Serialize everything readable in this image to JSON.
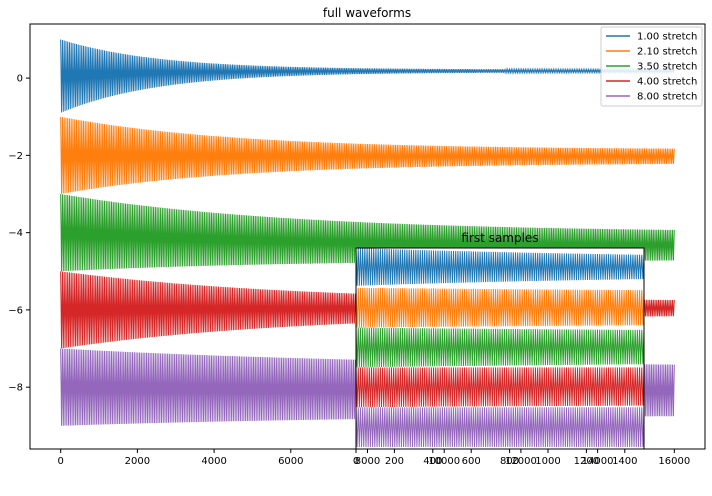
{
  "chart_data": [
    {
      "type": "line",
      "title": "full waveforms",
      "xlabel": "",
      "ylabel": "",
      "xlim": [
        -800,
        16800
      ],
      "ylim": [
        -9.6,
        1.4
      ],
      "xticks": [
        0,
        2000,
        4000,
        6000,
        8000,
        10000,
        12000,
        14000,
        16000
      ],
      "xtick_labels": [
        "0",
        "2000",
        "4000",
        "6000",
        "8000",
        "10000",
        "12000",
        "14000",
        "16000"
      ],
      "yticks": [
        0,
        -2,
        -4,
        -6,
        -8
      ],
      "ytick_labels": [
        "0",
        "−2",
        "−4",
        "−6",
        "−8"
      ],
      "grid": false,
      "legend_position": "top-right",
      "series": [
        {
          "name": "1.00 stretch",
          "color": "#1f77b4",
          "x_range": [
            0,
            16000
          ],
          "start_band": [
            -0.9,
            1.0
          ],
          "settled_band": [
            0.15,
            0.22
          ],
          "decay_samples": 2500
        },
        {
          "name": "2.10 stretch",
          "color": "#ff7f0e",
          "x_range": [
            0,
            16000
          ],
          "start_band": [
            -3.0,
            -1.0
          ],
          "settled_band": [
            -2.2,
            -1.85
          ],
          "decay_samples": 4500
        },
        {
          "name": "3.50 stretch",
          "color": "#2ca02c",
          "x_range": [
            0,
            16000
          ],
          "start_band": [
            -5.0,
            -3.0
          ],
          "settled_band": [
            -4.7,
            -4.0
          ],
          "decay_samples": 6000
        },
        {
          "name": "4.00 stretch",
          "color": "#d62728",
          "x_range": [
            0,
            16000
          ],
          "start_band": [
            -7.0,
            -5.0
          ],
          "settled_band": [
            -6.1,
            -5.8
          ],
          "decay_samples": 6000
        },
        {
          "name": "8.00 stretch",
          "color": "#9467bd",
          "x_range": [
            0,
            16000
          ],
          "start_band": [
            -9.0,
            -7.0
          ],
          "settled_band": [
            -8.7,
            -7.5
          ],
          "decay_samples": 9000
        }
      ]
    },
    {
      "type": "line",
      "title": "first samples",
      "xlabel": "",
      "ylabel": "",
      "xlim": [
        0,
        1500
      ],
      "ylim": [
        -9.1,
        1.0
      ],
      "xticks": [
        0,
        200,
        400,
        600,
        800,
        1000,
        1200,
        1400
      ],
      "xtick_labels": [
        "0",
        "200",
        "400",
        "600",
        "800",
        "1000",
        "1200",
        "1400"
      ],
      "grid": false,
      "series": [
        {
          "name": "1.00 stretch",
          "color": "#1f77b4",
          "x_range": [
            0,
            1500
          ],
          "start_band": [
            -0.9,
            1.0
          ],
          "settled_band": [
            -0.3,
            0.4
          ],
          "decay_samples": 1800
        },
        {
          "name": "2.10 stretch",
          "color": "#ff7f0e",
          "x_range": [
            0,
            1500
          ],
          "start_band": [
            -3.0,
            -1.0
          ],
          "settled_band": [
            -2.7,
            -1.3
          ],
          "decay_samples": 3000
        },
        {
          "name": "3.50 stretch",
          "color": "#2ca02c",
          "x_range": [
            0,
            1500
          ],
          "start_band": [
            -5.0,
            -3.0
          ],
          "settled_band": [
            -4.6,
            -3.3
          ],
          "decay_samples": 3000
        },
        {
          "name": "4.00 stretch",
          "color": "#d62728",
          "x_range": [
            0,
            1500
          ],
          "start_band": [
            -7.0,
            -5.0
          ],
          "settled_band": [
            -6.8,
            -5.0
          ],
          "decay_samples": 3000
        },
        {
          "name": "8.00 stretch",
          "color": "#9467bd",
          "x_range": [
            0,
            1500
          ],
          "start_band": [
            -9.0,
            -7.0
          ],
          "settled_band": [
            -9.0,
            -7.0
          ],
          "decay_samples": 3000
        }
      ]
    }
  ]
}
